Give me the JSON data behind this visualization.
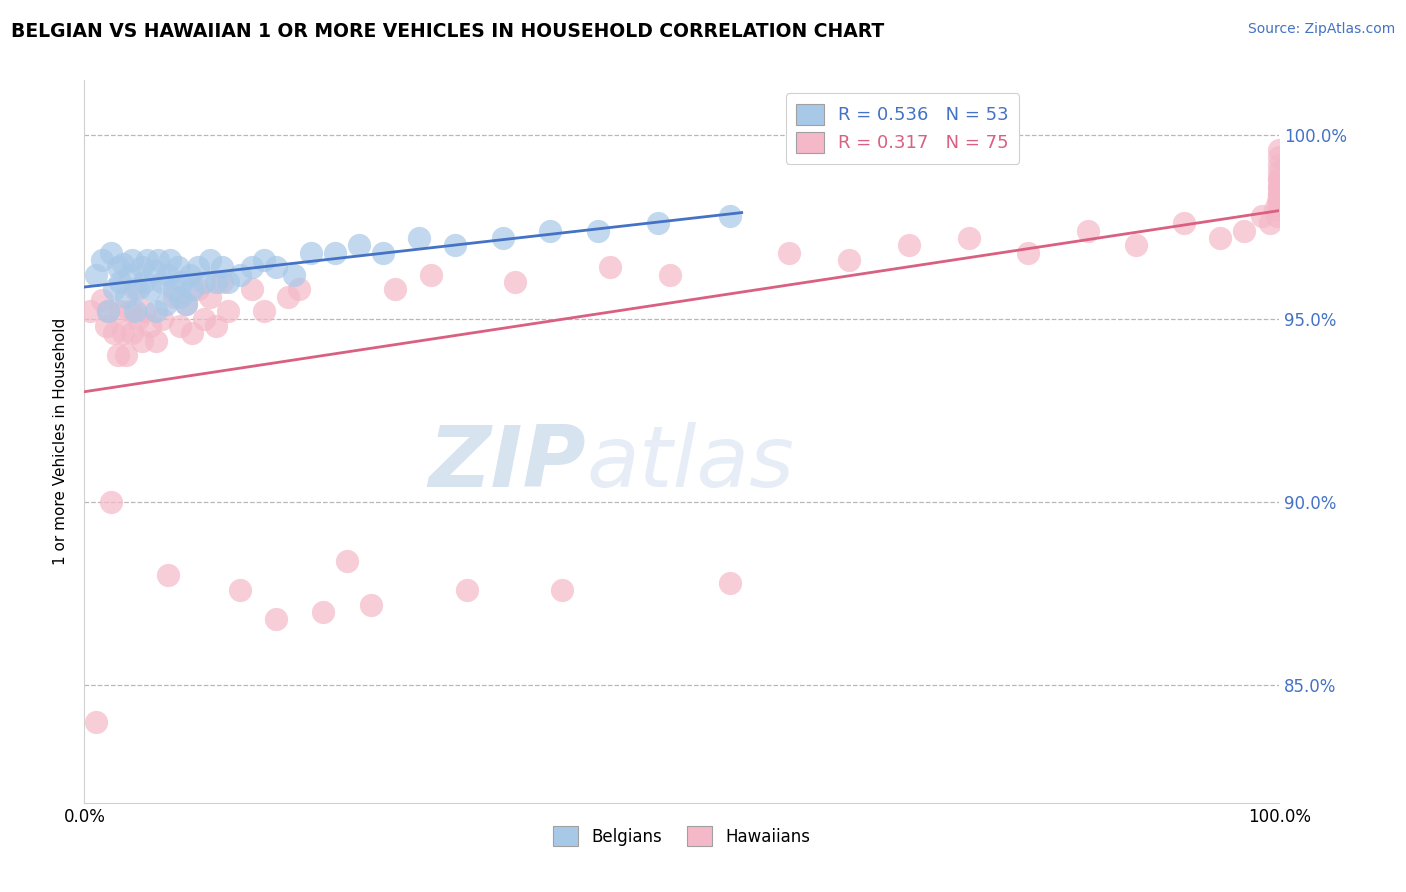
{
  "title": "BELGIAN VS HAWAIIAN 1 OR MORE VEHICLES IN HOUSEHOLD CORRELATION CHART",
  "source": "Source: ZipAtlas.com",
  "ylabel": "1 or more Vehicles in Household",
  "xlim": [
    0.0,
    1.0
  ],
  "ylim": [
    0.818,
    1.015
  ],
  "yticks": [
    0.85,
    0.9,
    0.95,
    1.0
  ],
  "ytick_labels": [
    "85.0%",
    "90.0%",
    "95.0%",
    "100.0%"
  ],
  "xtick_labels": [
    "0.0%",
    "100.0%"
  ],
  "xtick_positions": [
    0.0,
    1.0
  ],
  "belgian_R": 0.536,
  "belgian_N": 53,
  "hawaiian_R": 0.317,
  "hawaiian_N": 75,
  "belgian_color": "#a8c8e8",
  "hawaiian_color": "#f4b8c8",
  "belgian_line_color": "#4472c4",
  "hawaiian_line_color": "#d96080",
  "watermark_zip": "ZIP",
  "watermark_atlas": "atlas",
  "belgians_x": [
    0.01,
    0.015,
    0.02,
    0.022,
    0.025,
    0.028,
    0.03,
    0.032,
    0.035,
    0.038,
    0.04,
    0.042,
    0.045,
    0.048,
    0.05,
    0.052,
    0.055,
    0.058,
    0.06,
    0.062,
    0.065,
    0.068,
    0.07,
    0.072,
    0.075,
    0.078,
    0.08,
    0.082,
    0.085,
    0.088,
    0.09,
    0.095,
    0.1,
    0.105,
    0.11,
    0.115,
    0.12,
    0.13,
    0.14,
    0.15,
    0.16,
    0.175,
    0.19,
    0.21,
    0.23,
    0.25,
    0.28,
    0.31,
    0.35,
    0.39,
    0.43,
    0.48,
    0.54
  ],
  "belgians_y": [
    0.962,
    0.966,
    0.952,
    0.968,
    0.958,
    0.964,
    0.96,
    0.965,
    0.956,
    0.962,
    0.966,
    0.952,
    0.958,
    0.964,
    0.96,
    0.966,
    0.958,
    0.963,
    0.952,
    0.966,
    0.96,
    0.954,
    0.962,
    0.966,
    0.958,
    0.964,
    0.956,
    0.96,
    0.954,
    0.962,
    0.958,
    0.964,
    0.96,
    0.966,
    0.96,
    0.964,
    0.96,
    0.962,
    0.964,
    0.966,
    0.964,
    0.962,
    0.968,
    0.968,
    0.97,
    0.968,
    0.972,
    0.97,
    0.972,
    0.974,
    0.974,
    0.976,
    0.978
  ],
  "hawaiians_x": [
    0.005,
    0.01,
    0.015,
    0.018,
    0.02,
    0.022,
    0.025,
    0.028,
    0.03,
    0.032,
    0.035,
    0.038,
    0.04,
    0.042,
    0.045,
    0.048,
    0.05,
    0.055,
    0.06,
    0.065,
    0.07,
    0.075,
    0.08,
    0.085,
    0.09,
    0.095,
    0.1,
    0.105,
    0.11,
    0.115,
    0.12,
    0.13,
    0.14,
    0.15,
    0.16,
    0.17,
    0.18,
    0.2,
    0.22,
    0.24,
    0.26,
    0.29,
    0.32,
    0.36,
    0.4,
    0.44,
    0.49,
    0.54,
    0.59,
    0.64,
    0.69,
    0.74,
    0.79,
    0.84,
    0.88,
    0.92,
    0.95,
    0.97,
    0.985,
    0.992,
    0.996,
    0.998,
    0.999,
    1.0,
    1.0,
    1.0,
    1.0,
    1.0,
    1.0,
    1.0,
    1.0,
    1.0,
    1.0,
    1.0,
    1.0
  ],
  "hawaiians_y": [
    0.952,
    0.84,
    0.955,
    0.948,
    0.952,
    0.9,
    0.946,
    0.94,
    0.952,
    0.946,
    0.94,
    0.952,
    0.946,
    0.958,
    0.95,
    0.944,
    0.952,
    0.948,
    0.944,
    0.95,
    0.88,
    0.956,
    0.948,
    0.954,
    0.946,
    0.958,
    0.95,
    0.956,
    0.948,
    0.96,
    0.952,
    0.876,
    0.958,
    0.952,
    0.868,
    0.956,
    0.958,
    0.87,
    0.884,
    0.872,
    0.958,
    0.962,
    0.876,
    0.96,
    0.876,
    0.964,
    0.962,
    0.878,
    0.968,
    0.966,
    0.97,
    0.972,
    0.968,
    0.974,
    0.97,
    0.976,
    0.972,
    0.974,
    0.978,
    0.976,
    0.98,
    0.978,
    0.982,
    0.984,
    0.98,
    0.986,
    0.982,
    0.988,
    0.984,
    0.99,
    0.986,
    0.992,
    0.988,
    0.994,
    0.996
  ]
}
